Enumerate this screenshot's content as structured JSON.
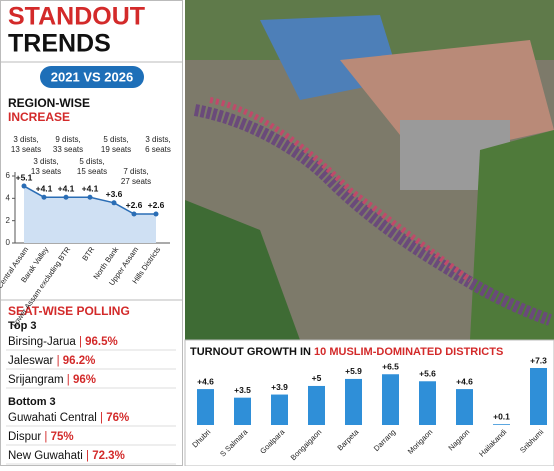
{
  "header": {
    "title_1": "STANDOUT",
    "title_2": "TRENDS",
    "badge": "2021 VS 2026"
  },
  "chart_data": [
    {
      "type": "line",
      "title_1": "REGION-WISE",
      "title_2": "INCREASE",
      "categories": [
        "Central Assam",
        "Barak Valley",
        "Lower Assam excluding BTR",
        "BTR",
        "North Bank",
        "Upper Assam",
        "Hills Districts"
      ],
      "values": [
        5.1,
        4.1,
        4.1,
        4.1,
        3.6,
        2.6,
        2.6
      ],
      "value_labels": [
        "+5.1",
        "+4.1",
        "+4.1",
        "+4.1",
        "+3.6",
        "+2.6",
        "+2.6"
      ],
      "annotations": [
        [
          "3 dists,",
          "13 seats"
        ],
        [
          "3 dists,",
          "13 seats"
        ],
        [
          "9 dists,",
          "33 seats"
        ],
        [
          "5 dists,",
          "15 seats"
        ],
        [
          "5 dists,",
          "19 seats"
        ],
        [
          "7 dists,",
          "27 seats"
        ],
        [
          "3 dists,",
          "6 seats"
        ]
      ],
      "color": "#2a6db5",
      "ylim": [
        0,
        6
      ],
      "yticks": [
        0,
        2,
        4,
        6
      ]
    },
    {
      "type": "bar",
      "title": "TURNOUT GROWTH IN",
      "title_highlight": "10 MUSLIM-DOMINATED DISTRICTS",
      "categories": [
        "Dhubri",
        "S Salmara",
        "Goalpara",
        "Bongaigaon",
        "Barpeta",
        "Darrang",
        "Morigaon",
        "Nagaon",
        "Hailakandi",
        "Sribhumi"
      ],
      "values": [
        4.6,
        3.5,
        3.9,
        5,
        5.9,
        6.5,
        5.6,
        4.6,
        0.1,
        7.3
      ],
      "value_labels": [
        "+4.6",
        "+3.5",
        "+3.9",
        "+5",
        "+5.9",
        "+6.5",
        "+5.6",
        "+4.6",
        "+0.1",
        "+7.3"
      ],
      "color": "#2f8fd8"
    }
  ],
  "seat_polling": {
    "title": "SEAT-WISE POLLING",
    "groups": [
      {
        "label": "Top 3",
        "rows": [
          [
            "Birsing-Jarua",
            "96.5%"
          ],
          [
            "Jaleswar",
            "96.2%"
          ],
          [
            "Srijangram",
            "96%"
          ]
        ]
      },
      {
        "label": "Bottom 3",
        "rows": [
          [
            "Guwahati Central",
            "76%"
          ],
          [
            "Dispur",
            "75%"
          ],
          [
            "New Guwahati",
            "72.3%"
          ]
        ]
      }
    ]
  }
}
